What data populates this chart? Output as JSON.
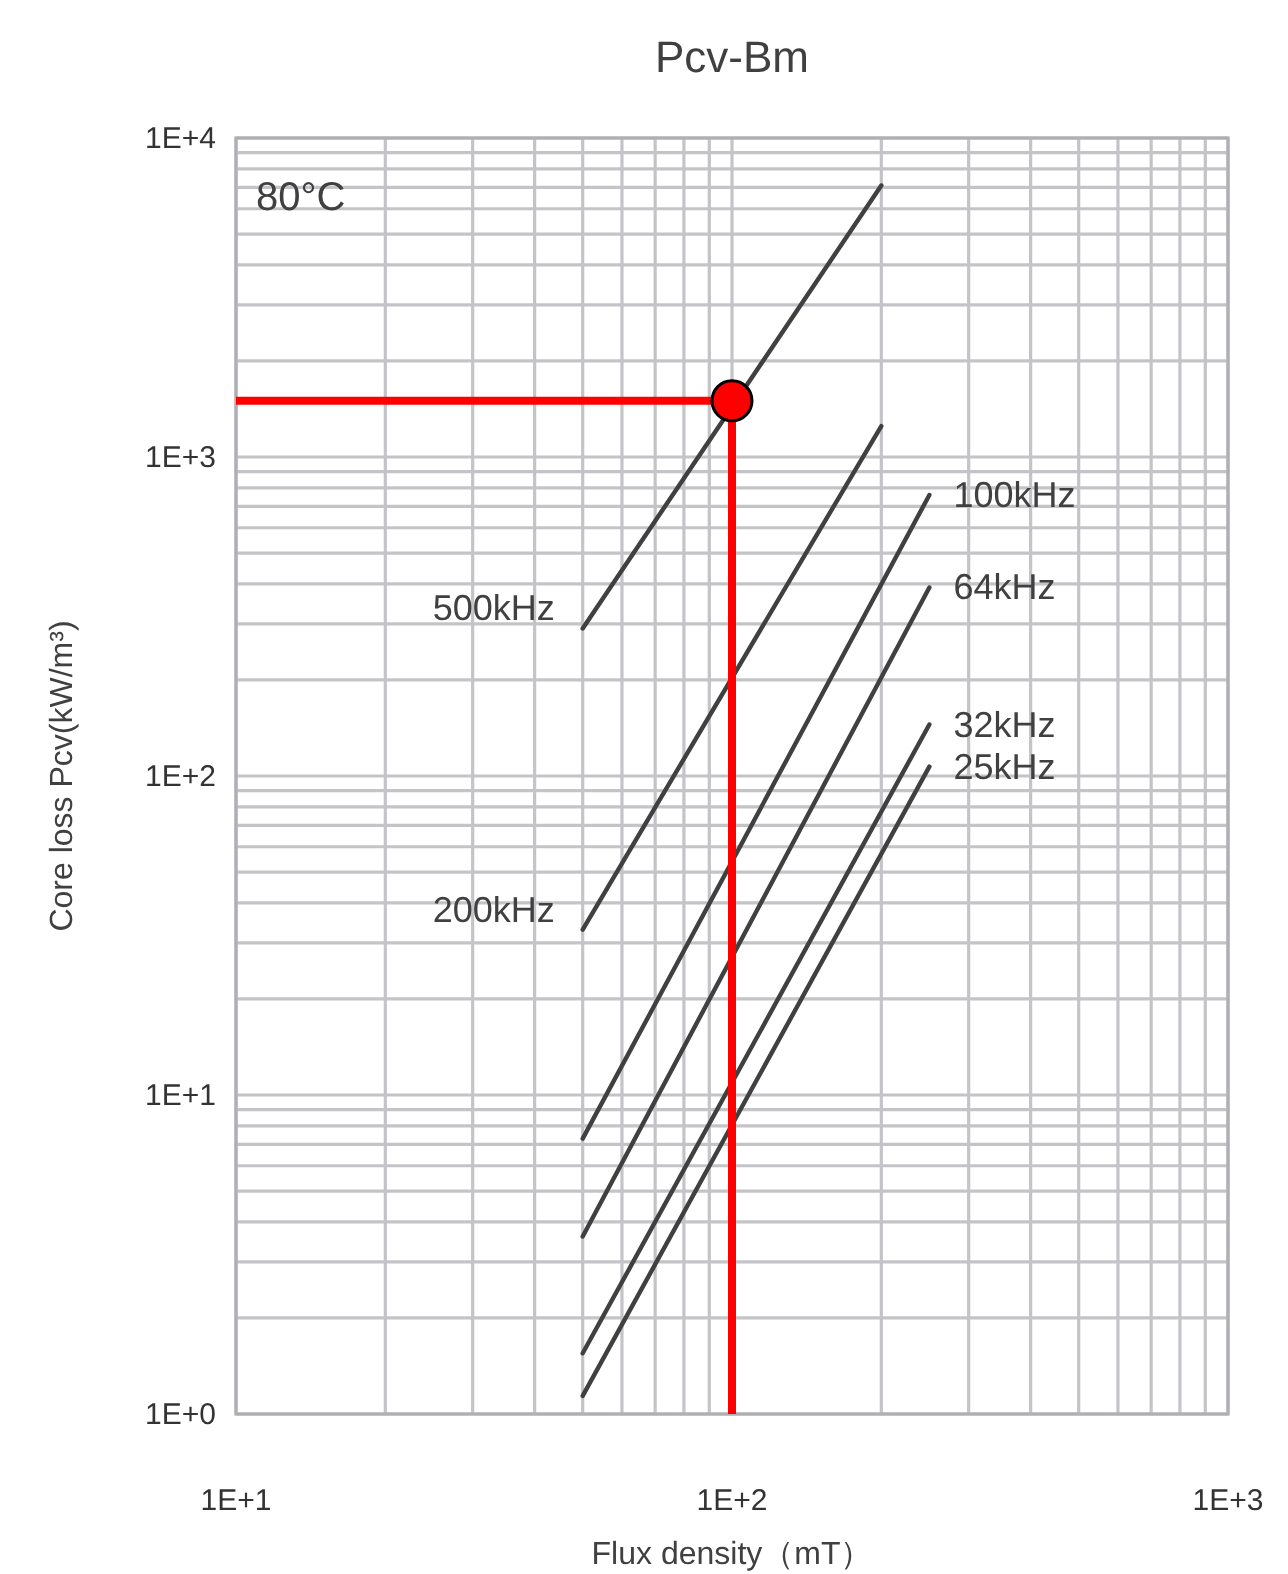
{
  "chart_data": {
    "type": "line",
    "title": "Pcv-Bm",
    "xlabel": "Flux density（mT）",
    "ylabel": "Core loss Pcv(kW/m³)",
    "log": "xy",
    "grid": true,
    "marker": "none",
    "line_style": "solid",
    "xlim": [
      10,
      1000
    ],
    "ylim": [
      1,
      10000
    ],
    "xticks": [
      {
        "value": 10,
        "label": "1E+1"
      },
      {
        "value": 100,
        "label": "1E+2"
      },
      {
        "value": 1000,
        "label": "1E+3"
      }
    ],
    "yticks": [
      {
        "value": 1,
        "label": "1E+0"
      },
      {
        "value": 10,
        "label": "1E+1"
      },
      {
        "value": 100,
        "label": "1E+2"
      },
      {
        "value": 1000,
        "label": "1E+3"
      },
      {
        "value": 10000,
        "label": "1E+4"
      }
    ],
    "annotations": [
      "80°C"
    ],
    "ref_lines": [
      {
        "axis": "y",
        "value": 1500,
        "color": "#ff0000"
      },
      {
        "axis": "x",
        "value": 100,
        "color": "#ff0000"
      }
    ],
    "series": [
      {
        "name": "500kHz",
        "color": "#404040",
        "x": [
          50,
          200
        ],
        "values": [
          290,
          7100
        ]
      },
      {
        "name": "200kHz",
        "color": "#404040",
        "x": [
          50,
          200
        ],
        "values": [
          33,
          1250
        ]
      },
      {
        "name": "100kHz",
        "color": "#404040",
        "x": [
          50,
          250
        ],
        "values": [
          7.3,
          760
        ]
      },
      {
        "name": "64kHz",
        "color": "#404040",
        "x": [
          50,
          250
        ],
        "values": [
          3.6,
          390
        ]
      },
      {
        "name": "32kHz",
        "color": "#404040",
        "x": [
          50,
          250
        ],
        "values": [
          1.55,
          145
        ]
      },
      {
        "name": "25kHz",
        "color": "#404040",
        "x": [
          50,
          250
        ],
        "values": [
          1.14,
          107
        ]
      },
      {
        "type": "scatter",
        "color": "#ff0000",
        "marker": "circle",
        "x": [
          100
        ],
        "values": [
          1500
        ]
      }
    ]
  }
}
